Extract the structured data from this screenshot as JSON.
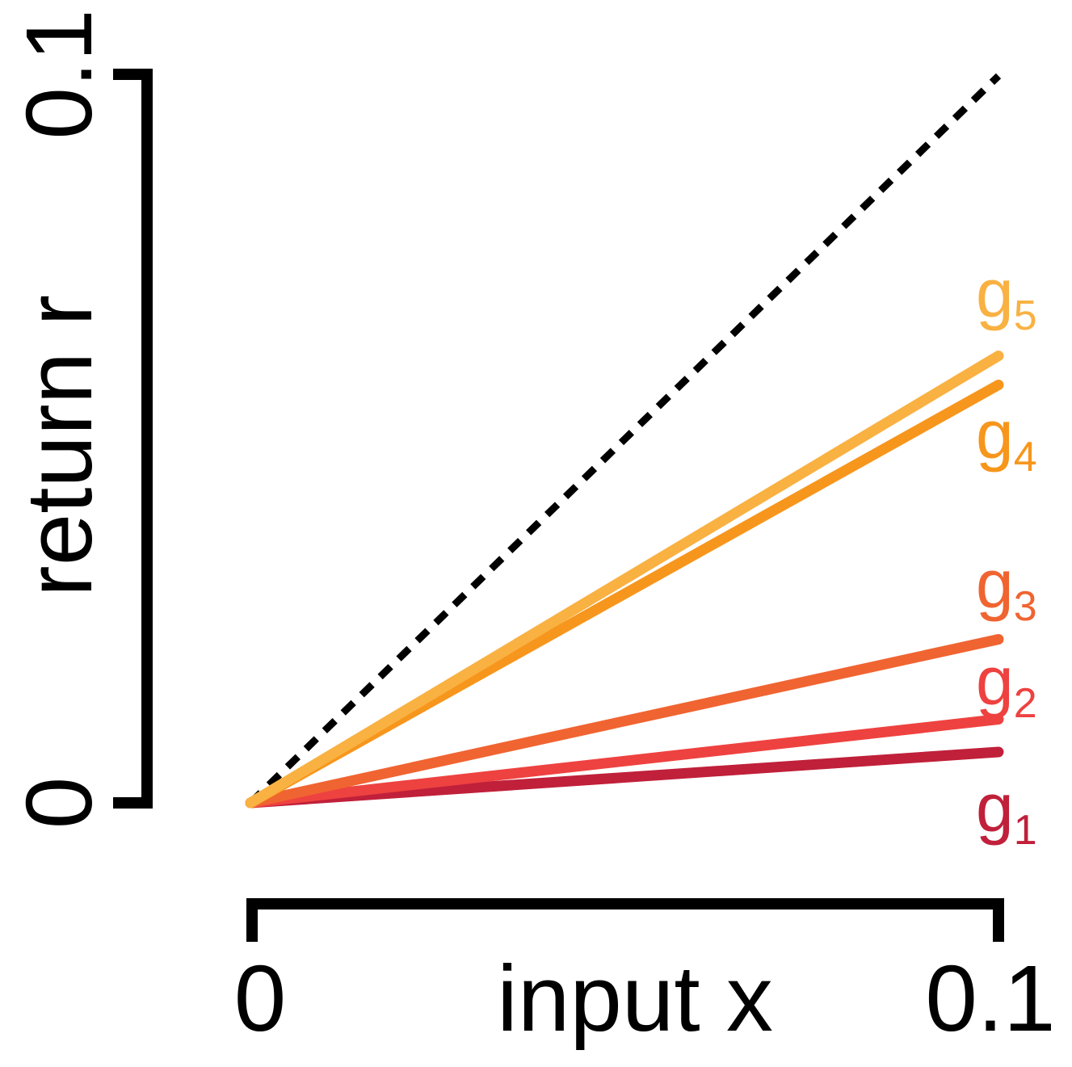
{
  "chart_data": {
    "type": "line",
    "xlabel": "input x",
    "ylabel": "return r",
    "xlim": [
      0,
      0.1
    ],
    "ylim": [
      0,
      0.1
    ],
    "xticks": [
      "0",
      "0.1"
    ],
    "yticks": [
      "0",
      "0.1"
    ],
    "grid": false,
    "legend": "none",
    "reference_line": {
      "style": "dotted",
      "color": "#000000",
      "x": [
        0,
        0.1
      ],
      "y": [
        0,
        0.1
      ]
    },
    "series": [
      {
        "name": "g",
        "sub": "1",
        "color": "#C0203A",
        "x": [
          0,
          0.1
        ],
        "y": [
          0,
          0.007
        ]
      },
      {
        "name": "g",
        "sub": "2",
        "color": "#EE4240",
        "x": [
          0,
          0.1
        ],
        "y": [
          0,
          0.0115
        ]
      },
      {
        "name": "g",
        "sub": "3",
        "color": "#F06431",
        "x": [
          0,
          0.1
        ],
        "y": [
          0,
          0.0225
        ]
      },
      {
        "name": "g",
        "sub": "4",
        "color": "#F7961C",
        "x": [
          0,
          0.1
        ],
        "y": [
          0,
          0.0575
        ]
      },
      {
        "name": "g",
        "sub": "5",
        "color": "#F9B142",
        "x": [
          0,
          0.1
        ],
        "y": [
          0,
          0.0615
        ]
      }
    ]
  }
}
